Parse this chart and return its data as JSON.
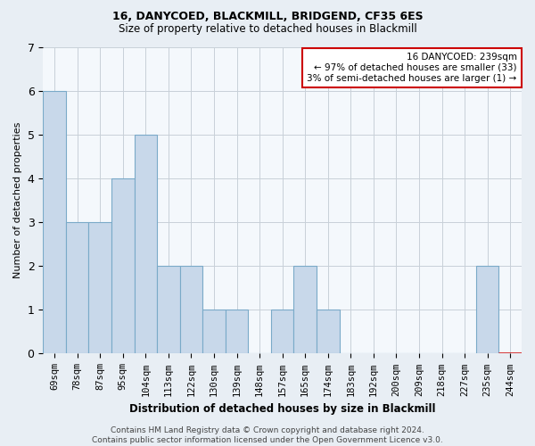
{
  "title1": "16, DANYCOED, BLACKMILL, BRIDGEND, CF35 6ES",
  "title2": "Size of property relative to detached houses in Blackmill",
  "xlabel": "Distribution of detached houses by size in Blackmill",
  "ylabel": "Number of detached properties",
  "categories": [
    "69sqm",
    "78sqm",
    "87sqm",
    "95sqm",
    "104sqm",
    "113sqm",
    "122sqm",
    "130sqm",
    "139sqm",
    "148sqm",
    "157sqm",
    "165sqm",
    "174sqm",
    "183sqm",
    "192sqm",
    "200sqm",
    "209sqm",
    "218sqm",
    "227sqm",
    "235sqm",
    "244sqm"
  ],
  "values": [
    6,
    3,
    3,
    4,
    5,
    2,
    2,
    1,
    1,
    0,
    1,
    2,
    1,
    0,
    0,
    0,
    0,
    0,
    0,
    2,
    0
  ],
  "highlight_bar_index": 20,
  "bar_color": "#c8d8ea",
  "bar_edge_color": "#7aaac8",
  "highlight_bar_edge_color": "#cc0000",
  "annotation_text": "16 DANYCOED: 239sqm\n← 97% of detached houses are smaller (33)\n3% of semi-detached houses are larger (1) →",
  "annotation_box_color": "#cc0000",
  "ylim": [
    0,
    7
  ],
  "yticks": [
    0,
    1,
    2,
    3,
    4,
    5,
    6,
    7
  ],
  "footnote": "Contains HM Land Registry data © Crown copyright and database right 2024.\nContains public sector information licensed under the Open Government Licence v3.0.",
  "background_color": "#e8eef4",
  "plot_background_color": "#f4f8fc",
  "grid_color": "#c8d0d8",
  "title1_fontsize": 9,
  "title2_fontsize": 8.5,
  "ylabel_fontsize": 8,
  "xlabel_fontsize": 8.5,
  "tick_fontsize": 7.5,
  "annot_fontsize": 7.5,
  "footnote_fontsize": 6.5
}
